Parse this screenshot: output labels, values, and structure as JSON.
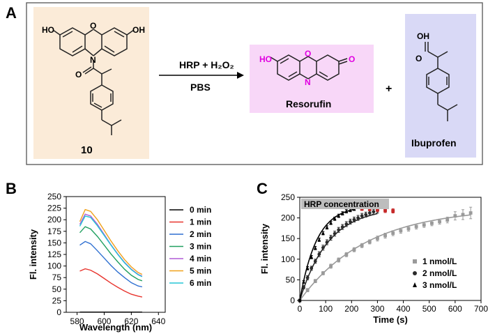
{
  "panel_labels": {
    "a": "A",
    "b": "B",
    "c": "C"
  },
  "scheme": {
    "compound_number": "10",
    "reagents": "HRP + H₂O₂",
    "solvent": "PBS",
    "plus": "+",
    "substituent_oh": "OH",
    "product_1_name": "Resorufin",
    "product_2_name": "Ibuprofen",
    "product_1_labels": {
      "ho": "HO",
      "o": "O",
      "ketone": "O",
      "n": "N"
    },
    "colors": {
      "compound_box": "#fbebd8",
      "resorufin_box": "#f8d7f8",
      "ibuprofen_box": "#d9d9f6",
      "resorufin_atoms": "#e000e0"
    }
  },
  "chart_data": [
    {
      "type": "line",
      "panel": "B",
      "xlabel": "Wavelength (nm)",
      "ylabel": "Fl. intensity",
      "xlim": [
        572,
        645
      ],
      "ylim": [
        0,
        250
      ],
      "xticks": [
        580,
        600,
        620,
        640
      ],
      "yticks": [
        0,
        25,
        50,
        75,
        100,
        125,
        150,
        175,
        200,
        225,
        250
      ],
      "legend_position": "right",
      "x": [
        582,
        586,
        590,
        595,
        600,
        605,
        610,
        615,
        620,
        625,
        628
      ],
      "series": [
        {
          "name": "0 min",
          "color": "#000000",
          "values": [
            0.5,
            0.5,
            0.5,
            0.5,
            0.5,
            0.5,
            0.5,
            0.5,
            0.5,
            0.5,
            0.5
          ]
        },
        {
          "name": "1 min",
          "color": "#e8342d",
          "values": [
            89,
            94,
            91,
            83,
            73,
            63,
            54,
            46,
            39,
            35,
            33
          ]
        },
        {
          "name": "2 min",
          "color": "#2e6fd1",
          "values": [
            145,
            153,
            148,
            133,
            117,
            101,
            87,
            75,
            64,
            57,
            55
          ]
        },
        {
          "name": "3 min",
          "color": "#21a060",
          "values": [
            172,
            185,
            180,
            164,
            145,
            126,
            109,
            93,
            80,
            71,
            68
          ]
        },
        {
          "name": "4 min",
          "color": "#b05ad6",
          "values": [
            190,
            212,
            208,
            190,
            168,
            146,
            126,
            108,
            93,
            82,
            78
          ]
        },
        {
          "name": "5 min",
          "color": "#f0a11a",
          "values": [
            196,
            222,
            218,
            200,
            177,
            154,
            133,
            114,
            98,
            86,
            82
          ]
        },
        {
          "name": "6 min",
          "color": "#25c6d6",
          "values": [
            186,
            208,
            205,
            187,
            166,
            145,
            125,
            107,
            92,
            81,
            77
          ]
        }
      ]
    },
    {
      "type": "scatter",
      "panel": "C",
      "title": "HRP concentration",
      "xlabel": "Time (s)",
      "ylabel": "Fl. intensity",
      "xlim": [
        0,
        700
      ],
      "ylim": [
        0,
        250
      ],
      "xticks": [
        0,
        100,
        200,
        300,
        400,
        500,
        600,
        700
      ],
      "yticks": [
        0,
        50,
        100,
        150,
        200,
        250
      ],
      "legend_position": "bottom-right",
      "series": [
        {
          "name": "1 nmol/L",
          "marker": "square",
          "color": "#9a9a9a",
          "fit_tau": 260,
          "fit_max": 225,
          "x": [
            0,
            30,
            60,
            90,
            120,
            150,
            180,
            210,
            240,
            270,
            300,
            330,
            360,
            390,
            420,
            450,
            480,
            510,
            540,
            570,
            600,
            630,
            660
          ],
          "y": [
            0,
            25,
            47,
            66,
            83,
            98,
            111,
            123,
            133,
            142,
            150,
            157,
            163,
            169,
            174,
            179,
            183,
            187,
            191,
            195,
            205,
            208,
            212
          ],
          "err": [
            3,
            4,
            4,
            4,
            5,
            5,
            5,
            5,
            5,
            5,
            6,
            6,
            6,
            6,
            6,
            6,
            6,
            6,
            6,
            7,
            10,
            12,
            14
          ]
        },
        {
          "name": "2 nmol/L",
          "marker": "circle",
          "color": "#2a2a2a",
          "fit_tau": 110,
          "fit_max": 225,
          "x": [
            0,
            15,
            30,
            45,
            60,
            75,
            90,
            105,
            120,
            135,
            150,
            165,
            180,
            195,
            210,
            225,
            240,
            255,
            270,
            285,
            300
          ],
          "y": [
            0,
            32,
            55,
            78,
            95,
            112,
            128,
            141,
            152,
            162,
            171,
            178,
            185,
            191,
            196,
            200,
            205,
            208,
            212,
            215,
            218
          ],
          "err": [
            3,
            4,
            5,
            5,
            5,
            6,
            6,
            6,
            6,
            6,
            6,
            6,
            6,
            6,
            6,
            6,
            6,
            6,
            6,
            6,
            6
          ]
        },
        {
          "name": "3 nmol/L",
          "marker": "triangle",
          "color": "#000000",
          "fit_tau": 65,
          "fit_max": 230,
          "x": [
            0,
            15,
            30,
            45,
            60,
            75,
            90,
            105,
            120,
            135,
            150,
            165,
            180,
            195,
            210
          ],
          "y": [
            0,
            45,
            78,
            105,
            127,
            147,
            163,
            177,
            188,
            198,
            205,
            211,
            216,
            219,
            222
          ],
          "err": [
            2,
            3,
            4,
            4,
            4,
            4,
            4,
            4,
            4,
            4,
            4,
            4,
            4,
            4,
            4
          ]
        },
        {
          "name": "",
          "marker": "square",
          "color": "#c62828",
          "x": [
            240,
            270,
            300,
            330,
            360
          ],
          "y": [
            222,
            221,
            220,
            218,
            217
          ],
          "err": [
            4,
            4,
            5,
            5,
            5
          ]
        }
      ]
    }
  ]
}
